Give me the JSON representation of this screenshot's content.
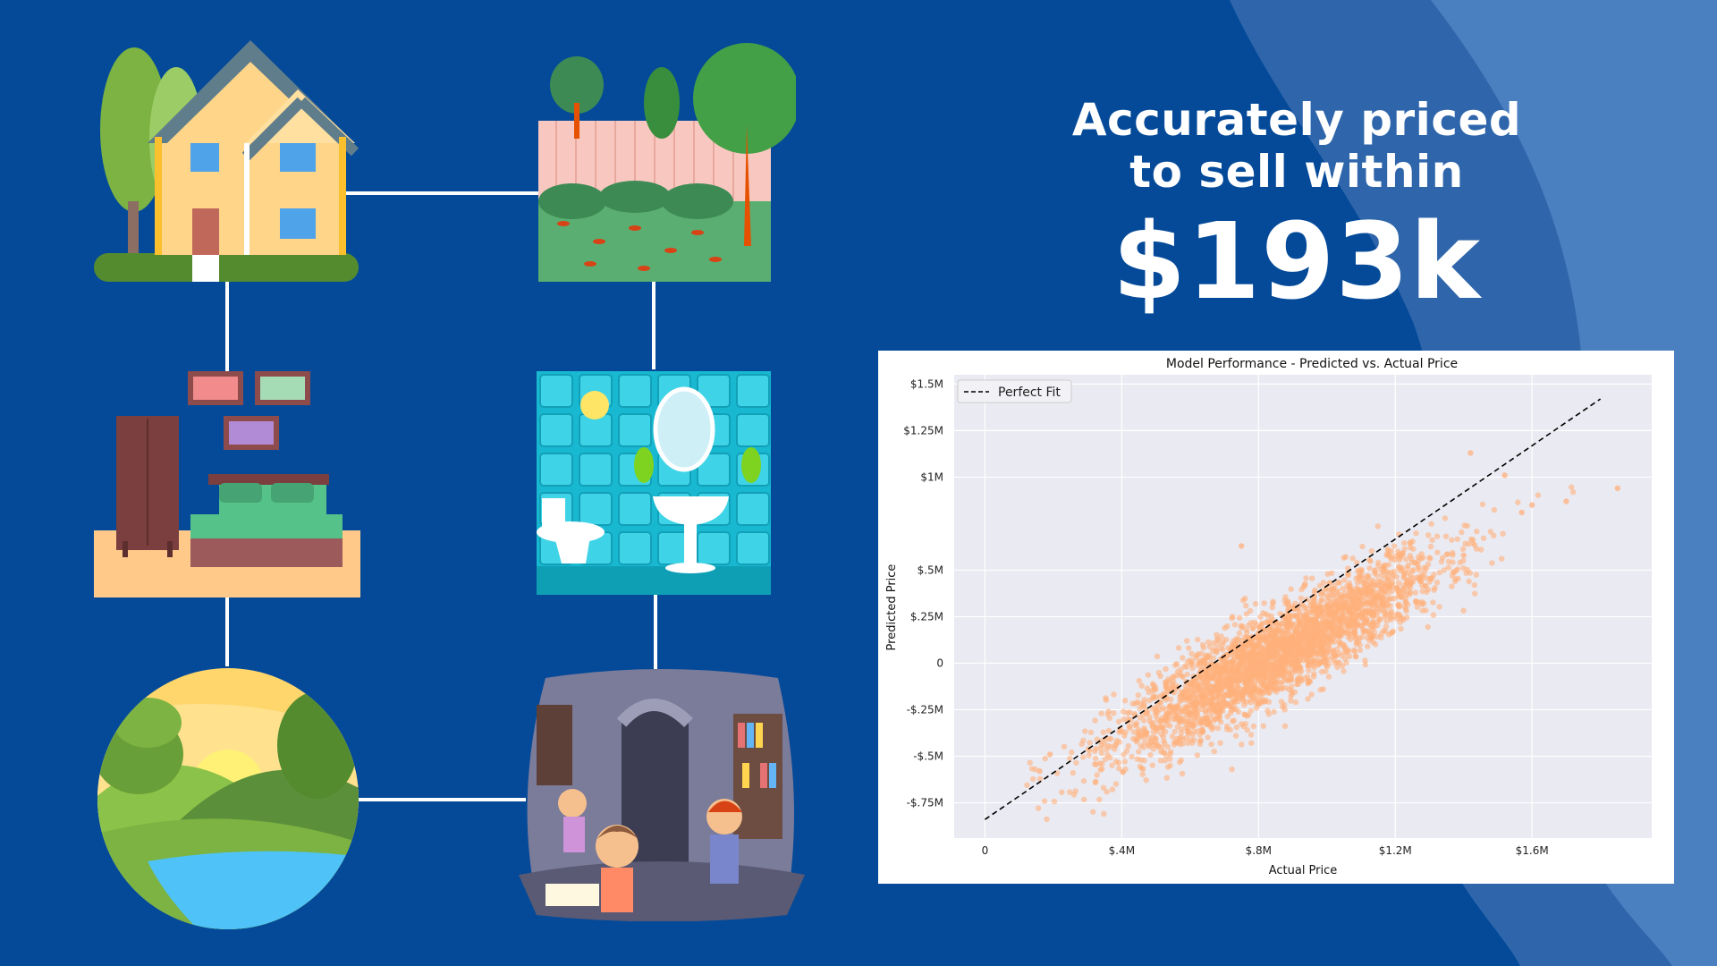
{
  "headline": {
    "line1": "Accurately priced",
    "line2": "to sell within",
    "amount": "$193k"
  },
  "colors": {
    "background": "#044a99",
    "wave_light": "#3b72b4",
    "wave_mid": "#2a62aa",
    "connector": "#ffffff",
    "point": "#ffb07c",
    "plot_bg": "#eaeaf2"
  },
  "illustrations": [
    "house",
    "backyard",
    "bedroom",
    "bathroom",
    "nature-landscape",
    "library-room"
  ],
  "chart_data": {
    "type": "scatter",
    "title": "Model Performance - Predicted vs. Actual Price",
    "xlabel": "Actual Price",
    "ylabel": "Predicted Price",
    "xlim": [
      -0.09,
      1.95
    ],
    "ylim": [
      -0.94,
      1.55
    ],
    "x_ticks": [
      0,
      0.4,
      0.8,
      1.2,
      1.6
    ],
    "x_tick_labels": [
      "0",
      "$.4M",
      "$.8M",
      "$1.2M",
      "$1.6M"
    ],
    "y_ticks": [
      -0.75,
      -0.5,
      -0.25,
      0,
      0.25,
      0.5,
      1.0,
      1.25,
      1.5
    ],
    "y_tick_labels": [
      "-$.75M",
      "-$.5M",
      "-$.25M",
      "0",
      "$.25M",
      "$.5M",
      "$1M",
      "$1.25M",
      "$1.5M"
    ],
    "legend": {
      "label": "Perfect Fit",
      "position": "top-left"
    },
    "reference_line": {
      "x": [
        0,
        1.8
      ],
      "y": [
        -0.84,
        1.42
      ],
      "style": "dashed",
      "color": "#000000"
    },
    "series": [
      {
        "point_color": "#ffb07c",
        "cloud_center": [
          0.86,
          0.05
        ],
        "cloud_trend_slope": 1.0,
        "cloud_x_range": [
          0.12,
          1.85
        ],
        "approx_point_count": 3000,
        "outliers": [
          [
            1.85,
            0.94
          ],
          [
            1.7,
            0.87
          ],
          [
            1.6,
            0.85
          ],
          [
            1.52,
            1.01
          ],
          [
            1.4,
            0.58
          ],
          [
            0.75,
            0.63
          ],
          [
            0.16,
            -0.58
          ],
          [
            0.19,
            -0.49
          ],
          [
            1.42,
            1.13
          ],
          [
            1.57,
            0.81
          ]
        ]
      }
    ]
  }
}
